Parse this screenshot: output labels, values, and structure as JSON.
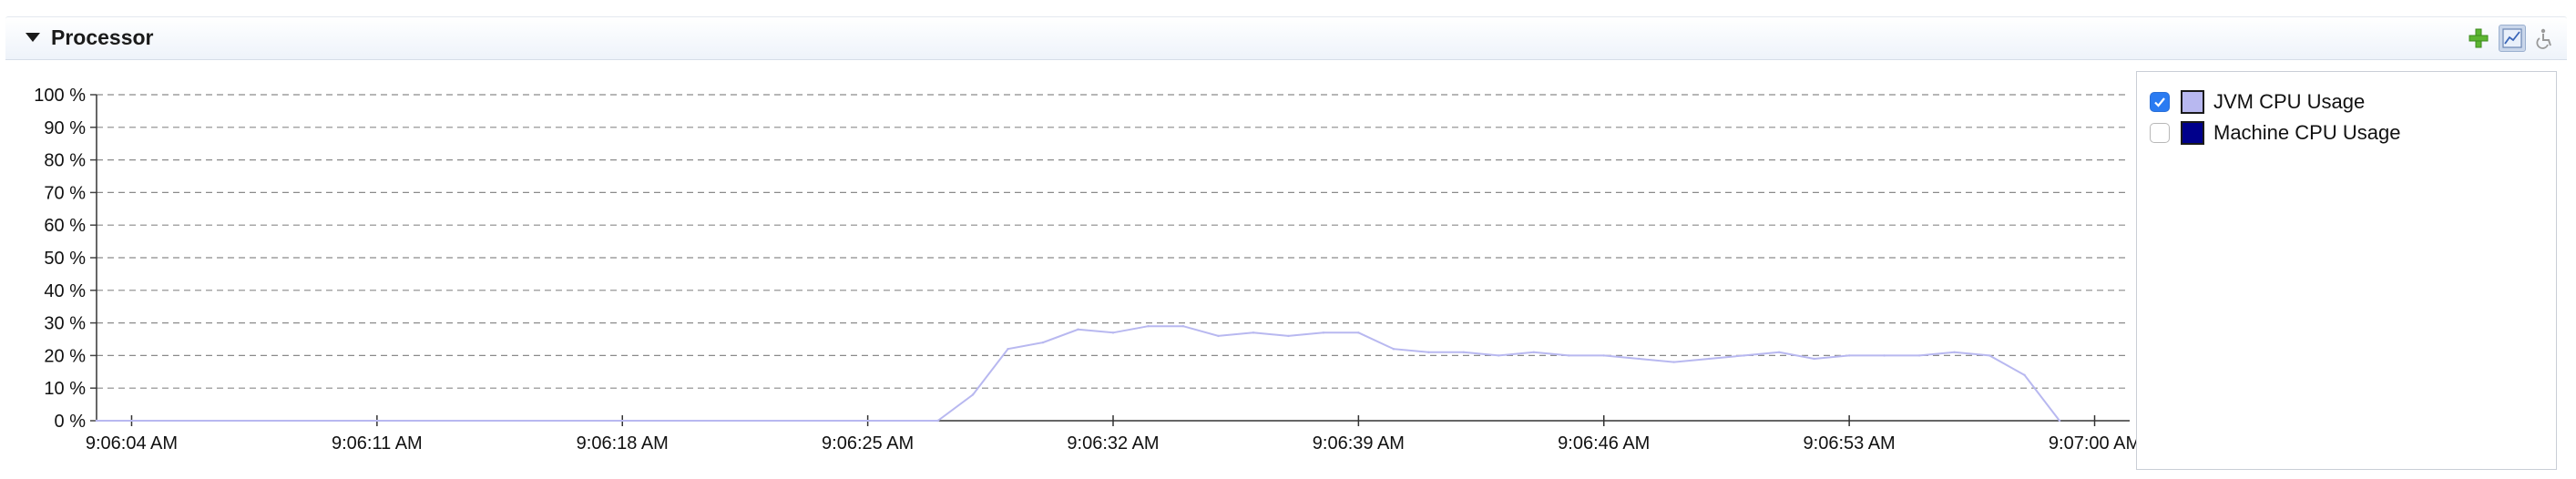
{
  "section": {
    "title": "Processor"
  },
  "toolbar": {
    "add_icon": "plus-icon",
    "chart_icon": "chart-settings-icon",
    "access_icon": "accessibility-icon"
  },
  "colors": {
    "jvm_series": "#b8b8f0",
    "machine_series": "#00008b",
    "checkbox_checked": "#2a7bf2"
  },
  "legend": {
    "items": [
      {
        "label": "JVM CPU Usage",
        "checked": true,
        "color": "#b8b8f0"
      },
      {
        "label": "Machine CPU Usage",
        "checked": false,
        "color": "#00008b"
      }
    ]
  },
  "chart_data": {
    "type": "line",
    "xlabel": "",
    "ylabel": "",
    "ylim": [
      0,
      100
    ],
    "grid": true,
    "legend_placement": "right",
    "y_ticks": [
      "0 %",
      "10 %",
      "20 %",
      "30 %",
      "40 %",
      "50 %",
      "60 %",
      "70 %",
      "80 %",
      "90 %",
      "100 %"
    ],
    "x_ticks": [
      "9:06:04 AM",
      "9:06:11 AM",
      "9:06:18 AM",
      "9:06:25 AM",
      "9:06:32 AM",
      "9:06:39 AM",
      "9:06:46 AM",
      "9:06:53 AM",
      "9:07:00 AM"
    ],
    "x_range": [
      "9:06:03 AM",
      "9:07:01 AM"
    ],
    "series": [
      {
        "name": "JVM CPU Usage",
        "x": [
          "9:06:03 AM",
          "9:06:27 AM",
          "9:06:28 AM",
          "9:06:29 AM",
          "9:06:30 AM",
          "9:06:31 AM",
          "9:06:32 AM",
          "9:06:33 AM",
          "9:06:34 AM",
          "9:06:35 AM",
          "9:06:36 AM",
          "9:06:37 AM",
          "9:06:38 AM",
          "9:06:39 AM",
          "9:06:40 AM",
          "9:06:41 AM",
          "9:06:42 AM",
          "9:06:43 AM",
          "9:06:44 AM",
          "9:06:45 AM",
          "9:06:46 AM",
          "9:06:47 AM",
          "9:06:48 AM",
          "9:06:49 AM",
          "9:06:50 AM",
          "9:06:51 AM",
          "9:06:52 AM",
          "9:06:53 AM",
          "9:06:54 AM",
          "9:06:55 AM",
          "9:06:56 AM",
          "9:06:57 AM",
          "9:06:58 AM",
          "9:06:59 AM"
        ],
        "values": [
          0,
          0,
          8,
          22,
          24,
          28,
          27,
          29,
          29,
          26,
          27,
          26,
          27,
          27,
          22,
          21,
          21,
          20,
          21,
          20,
          20,
          19,
          18,
          19,
          20,
          21,
          19,
          20,
          20,
          20,
          21,
          20,
          14,
          0
        ]
      }
    ]
  }
}
